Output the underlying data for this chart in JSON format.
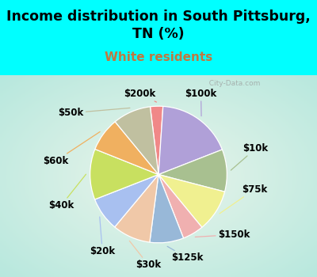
{
  "title": "Income distribution in South Pittsburg,\nTN (%)",
  "subtitle": "White residents",
  "bg_color": "#00FFFF",
  "chart_bg_color": "#c8eee0",
  "labels": [
    "$200k",
    "$100k",
    "$10k",
    "$75k",
    "$150k",
    "$125k",
    "$30k",
    "$20k",
    "$40k",
    "$60k",
    "$50k"
  ],
  "values": [
    3,
    18,
    10,
    10,
    5,
    8,
    9,
    8,
    12,
    8,
    9
  ],
  "colors": [
    "#f08888",
    "#b0a0d8",
    "#a8c090",
    "#f0f090",
    "#f0b0b0",
    "#98b8d8",
    "#f0c8a8",
    "#a8c0f0",
    "#c8e060",
    "#f0b060",
    "#c0c0a0"
  ],
  "start_angle": 97,
  "label_fontsize": 8.5,
  "title_fontsize": 12.5,
  "subtitle_fontsize": 11,
  "subtitle_color": "#c07840",
  "watermark": "  City-Data.com"
}
